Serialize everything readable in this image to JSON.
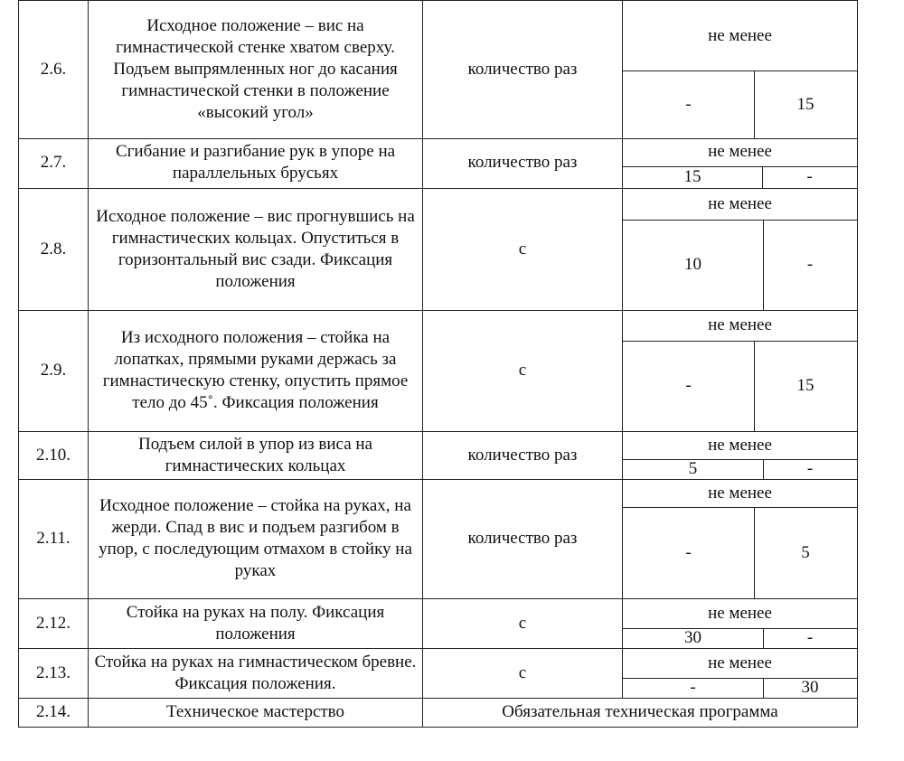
{
  "rows": [
    {
      "num": "2.6.",
      "desc": "Исходное положение – вис на гимнастической стенке хватом сверху. Подъем выпрямленных ног до касания гимнастической стенки в положение «высокий угол»",
      "unit": "количество раз",
      "header": "не менее",
      "val1": "-",
      "val2": "15"
    },
    {
      "num": "2.7.",
      "desc": "Сгибание и разгибание рук в упоре на параллельных брусьях",
      "unit": "количество раз",
      "header": "не менее",
      "val1": "15",
      "val2": "-"
    },
    {
      "num": "2.8.",
      "desc": "Исходное положение – вис прогнувшись на гимнастических кольцах. Опуститься в горизонтальный вис сзади. Фиксация положения",
      "unit": "с",
      "header": "не менее",
      "val1": "10",
      "val2": "-"
    },
    {
      "num": "2.9.",
      "desc": "Из исходного положения – стойка на лопатках, прямыми руками держась за гимнастическую стенку, опустить прямое тело до 45˚. Фиксация положения",
      "unit": "с",
      "header": "не менее",
      "val1": "-",
      "val2": "15"
    },
    {
      "num": "2.10.",
      "desc": "Подъем силой в упор из виса на гимнастических кольцах",
      "unit": "количество раз",
      "header": "не менее",
      "val1": "5",
      "val2": "-"
    },
    {
      "num": "2.11.",
      "desc": "Исходное положение – стойка на руках, на жерди. Спад в вис и подъем разгибом в упор, с последующим отмахом в стойку на руках",
      "unit": "количество раз",
      "header": "не менее",
      "val1": "-",
      "val2": "5"
    },
    {
      "num": "2.12.",
      "desc": "Стойка на руках на полу. Фиксация положения",
      "unit": "с",
      "header": "не менее",
      "val1": "30",
      "val2": "-"
    },
    {
      "num": "2.13.",
      "desc": "Стойка на руках на гимнастическом бревне. Фиксация положения.",
      "unit": "с",
      "header": "не менее",
      "val1": "-",
      "val2": "30"
    }
  ],
  "last_row": {
    "num": "2.14.",
    "desc": "Техническое мастерство",
    "requirement": "Обязательная техническая программа"
  }
}
